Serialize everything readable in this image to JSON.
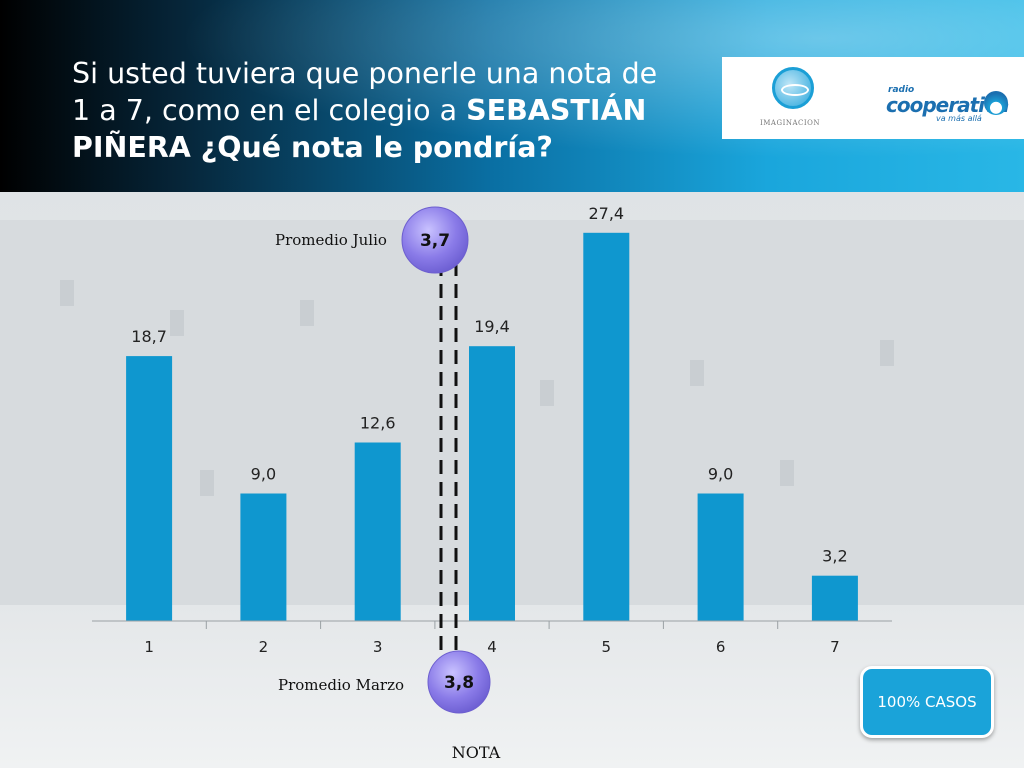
{
  "title": {
    "line1": "Si usted tuviera que ponerle una nota de",
    "line2_prefix": "1 a 7, como en el colegio a ",
    "line2_bold": "SEBASTIÁN",
    "line3_bold": "PIÑERA ¿Qué nota le pondría?"
  },
  "logos": {
    "imaginacion": "IMAGINACION",
    "coop_radio": "radio",
    "coop_name": "cooperativa",
    "coop_tag": "va más allá"
  },
  "badge": {
    "label": "100% CASOS"
  },
  "colors": {
    "bar": "#0f97cf",
    "badge": "#1aa3d9",
    "avg_bubble": "#8a7be8"
  },
  "chart_data": {
    "type": "bar",
    "title": "Si usted tuviera que ponerle una nota de 1 a 7, como en el colegio a SEBASTIÁN PIÑERA ¿Qué nota le pondría?",
    "categories": [
      "1",
      "2",
      "3",
      "4",
      "5",
      "6",
      "7"
    ],
    "values": [
      18.7,
      9.0,
      12.6,
      19.4,
      27.4,
      9.0,
      3.2
    ],
    "value_labels": [
      "18,7",
      "9,0",
      "12,6",
      "19,4",
      "27,4",
      "9,0",
      "3,2"
    ],
    "xlabel": "NOTA",
    "ylabel": "",
    "ylim": [
      0,
      30
    ],
    "grid": false,
    "annotations": [
      {
        "label": "Promedio Julio",
        "value": 3.7,
        "value_label": "3,7",
        "placement": "top"
      },
      {
        "label": "Promedio Marzo",
        "value": 3.8,
        "value_label": "3,8",
        "placement": "bottom"
      }
    ]
  }
}
